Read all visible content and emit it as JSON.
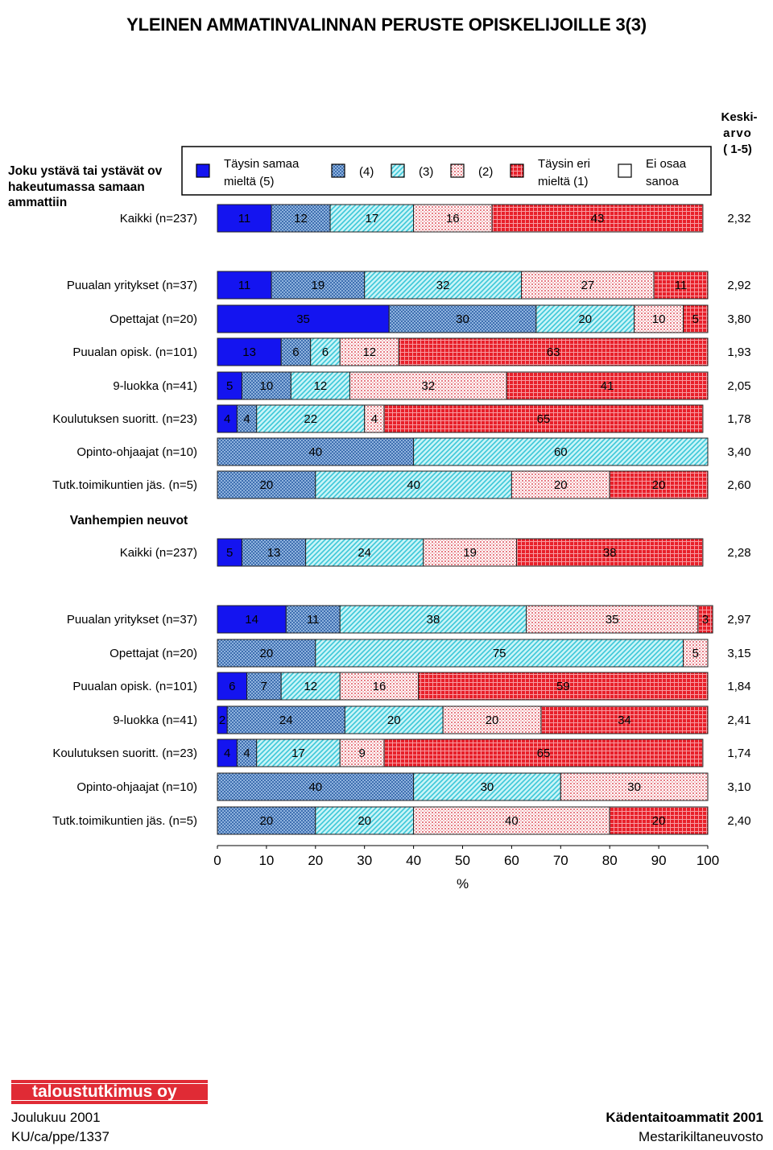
{
  "page_title": "YLEINEN AMMATINVALINNAN PERUSTE OPISKELIJOILLE 3(3)",
  "keskiarvo_label": [
    "Keski-",
    "arvo",
    "( 1-5)"
  ],
  "legend": [
    {
      "label": [
        "Täysin samaa",
        "mieltä (5)"
      ],
      "color": "#1414f0",
      "pattern": "solid-blue"
    },
    {
      "label": [
        "(4)"
      ],
      "color": "#6f9bd0",
      "pattern": "check-blue"
    },
    {
      "label": [
        "(3)"
      ],
      "color": "#9ee8f0",
      "pattern": "diag-cyan"
    },
    {
      "label": [
        "(2)"
      ],
      "color": "#f3b8b8",
      "pattern": "dots-pink"
    },
    {
      "label": [
        "Täysin eri",
        "mieltä (1)"
      ],
      "color": "#e8202a",
      "pattern": "grid-red"
    },
    {
      "label": [
        "Ei osaa",
        "sanoa"
      ],
      "color": "#ffffff",
      "pattern": "empty"
    }
  ],
  "chart_data": {
    "type": "bar",
    "orientation": "horizontal-stacked-100",
    "xlabel": "%",
    "xlim": [
      0,
      100
    ],
    "xticks": [
      "0",
      "10",
      "20",
      "30",
      "40",
      "50",
      "60",
      "70",
      "80",
      "90",
      "100"
    ],
    "sections": [
      {
        "title": [
          "Joku ystävä tai ystävät ov",
          "hakeutumassa samaan",
          "ammattiin"
        ],
        "rows": [
          {
            "label": "Kaikki (n=237)",
            "values": [
              11,
              12,
              17,
              16,
              43,
              0
            ],
            "mean": "2,32"
          },
          {
            "label": "Puualan yritykset (n=37)",
            "values": [
              11,
              19,
              32,
              27,
              11,
              0
            ],
            "mean": "2,92"
          },
          {
            "label": "Opettajat (n=20)",
            "values": [
              35,
              30,
              20,
              10,
              5,
              0
            ],
            "mean": "3,80"
          },
          {
            "label": "Puualan opisk. (n=101)",
            "values": [
              13,
              6,
              6,
              12,
              63,
              0
            ],
            "mean": "1,93"
          },
          {
            "label": "9-luokka (n=41)",
            "values": [
              5,
              10,
              12,
              32,
              41,
              0
            ],
            "mean": "2,05"
          },
          {
            "label": "Koulutuksen suoritt. (n=23)",
            "values": [
              4,
              4,
              22,
              4,
              65,
              0
            ],
            "mean": "1,78"
          },
          {
            "label": "Opinto-ohjaajat (n=10)",
            "values": [
              0,
              40,
              60,
              0,
              0,
              0
            ],
            "mean": "3,40"
          },
          {
            "label": "Tutk.toimikuntien jäs. (n=5)",
            "values": [
              0,
              20,
              40,
              20,
              20,
              0
            ],
            "mean": "2,60"
          }
        ]
      },
      {
        "title": [
          "Vanhempien neuvot"
        ],
        "rows": [
          {
            "label": "Kaikki (n=237)",
            "values": [
              5,
              13,
              24,
              19,
              38,
              0
            ],
            "mean": "2,28"
          },
          {
            "label": "Puualan yritykset (n=37)",
            "values": [
              14,
              11,
              38,
              35,
              3,
              0
            ],
            "mean": "2,97"
          },
          {
            "label": "Opettajat (n=20)",
            "values": [
              0,
              20,
              75,
              5,
              0,
              0
            ],
            "mean": "3,15"
          },
          {
            "label": "Puualan opisk. (n=101)",
            "values": [
              6,
              7,
              12,
              16,
              59,
              0
            ],
            "mean": "1,84"
          },
          {
            "label": "9-luokka (n=41)",
            "values": [
              2,
              24,
              20,
              20,
              34,
              0
            ],
            "mean": "2,41"
          },
          {
            "label": "Koulutuksen suoritt. (n=23)",
            "values": [
              4,
              4,
              17,
              9,
              65,
              0
            ],
            "mean": "1,74"
          },
          {
            "label": "Opinto-ohjaajat (n=10)",
            "values": [
              0,
              40,
              30,
              30,
              0,
              0
            ],
            "mean": "3,10"
          },
          {
            "label": "Tutk.toimikuntien jäs. (n=5)",
            "values": [
              0,
              20,
              20,
              40,
              20,
              0
            ],
            "mean": "2,40"
          }
        ]
      }
    ]
  },
  "footer": {
    "brand": "taloustutkimus oy",
    "date": "Joulukuu 2001",
    "code": "KU/ca/ppe/1337",
    "report": "Kädentaitoammatit 2001",
    "client": "Mestarikiltaneuvosto"
  }
}
